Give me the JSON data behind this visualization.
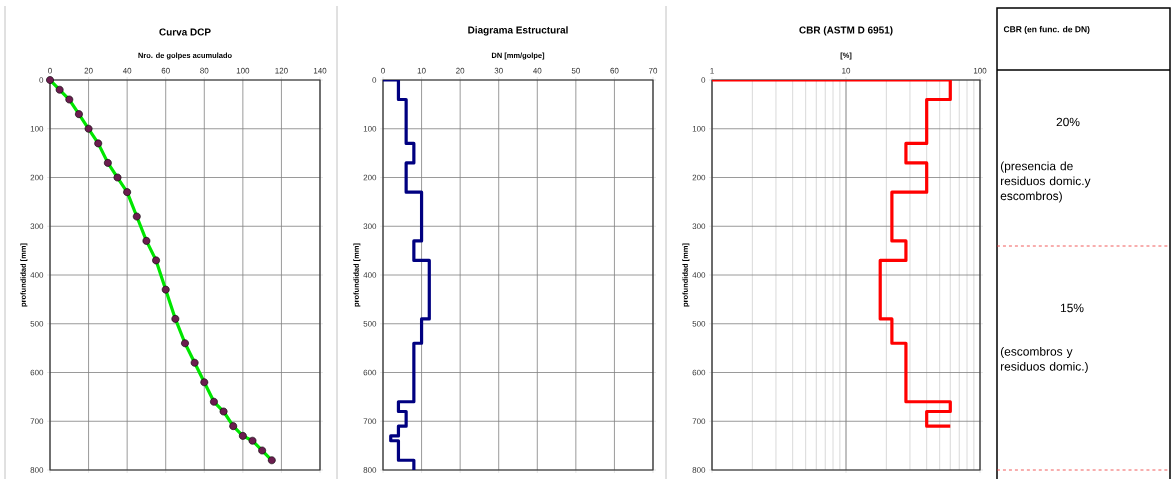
{
  "chart_data": [
    {
      "type": "line",
      "title": "Curva DCP",
      "xlabel": "Nro. de golpes acumulado",
      "ylabel": "profundidad [mm]",
      "xlim": [
        0,
        140
      ],
      "xticks": [
        0,
        20,
        40,
        60,
        80,
        100,
        120,
        140
      ],
      "ylim": [
        800,
        0
      ],
      "yticks": [
        0,
        100,
        200,
        300,
        400,
        500,
        600,
        700,
        800
      ],
      "grid": true,
      "marker": "circle",
      "series": [
        {
          "type": "line",
          "color": "#00e600",
          "colors": [
            "#6b1d4f",
            "#6b1d4f",
            "#6b1d4f",
            "#6b1d4f",
            "#6b1d4f",
            "#6b1d4f",
            "#6b1d4f",
            "#6b1d4f",
            "#6b1d4f",
            "#6b1d4f",
            "#6b1d4f",
            "#6b1d4f",
            "#6b1d4f",
            "#6b1d4f",
            "#6b1d4f",
            "#6b1d4f",
            "#6b1d4f",
            "#6b1d4f",
            "#6b1d4f",
            "#6b1d4f",
            "#6b1d4f",
            "#6b1d4f",
            "#6b1d4f",
            "#6b1d4f"
          ],
          "x": [
            0,
            5,
            10,
            15,
            20,
            25,
            30,
            35,
            40,
            45,
            50,
            55,
            60,
            65,
            70,
            75,
            80,
            85,
            90,
            95,
            100,
            105,
            110,
            115
          ],
          "values": [
            0,
            20,
            40,
            70,
            100,
            130,
            170,
            200,
            230,
            280,
            330,
            370,
            430,
            490,
            540,
            580,
            620,
            660,
            680,
            710,
            730,
            740,
            760,
            780
          ]
        }
      ]
    },
    {
      "type": "line",
      "title": "Diagrama Estructural",
      "xlabel": "DN [mm/golpe]",
      "ylabel": "profundidad [mm]",
      "xlim": [
        0,
        70
      ],
      "xticks": [
        0,
        10,
        20,
        30,
        40,
        50,
        60,
        70
      ],
      "ylim": [
        800,
        0
      ],
      "yticks": [
        0,
        100,
        200,
        300,
        400,
        500,
        600,
        700,
        800
      ],
      "grid": true,
      "series": [
        {
          "color": "#000080",
          "x": [
            0,
            4,
            4,
            6,
            6,
            8,
            8,
            6,
            6,
            10,
            10,
            8,
            8,
            12,
            12,
            10,
            10,
            8,
            8,
            4,
            4,
            6,
            6,
            4,
            4,
            2,
            2,
            4,
            4,
            8,
            8
          ],
          "values": [
            0,
            0,
            40,
            40,
            130,
            130,
            170,
            170,
            230,
            230,
            330,
            330,
            370,
            370,
            490,
            490,
            540,
            540,
            660,
            660,
            680,
            680,
            710,
            710,
            730,
            730,
            740,
            740,
            780,
            780,
            800
          ]
        }
      ]
    },
    {
      "type": "line",
      "title": "CBR (ASTM D 6951)",
      "xlabel": "[%]",
      "ylabel": "profundidad [mm]",
      "log": "x",
      "xlim": [
        1,
        100
      ],
      "xticks": [
        1,
        10,
        100
      ],
      "ylim": [
        800,
        0
      ],
      "yticks": [
        0,
        100,
        200,
        300,
        400,
        500,
        600,
        700,
        800
      ],
      "grid": true,
      "series": [
        {
          "color": "#ff0000",
          "x": [
            1,
            60,
            60,
            40,
            40,
            28,
            28,
            40,
            40,
            22,
            22,
            28,
            28,
            18,
            18,
            22,
            22,
            28,
            28,
            60,
            60,
            40,
            40,
            60
          ],
          "values": [
            0,
            0,
            40,
            40,
            130,
            130,
            170,
            170,
            230,
            230,
            330,
            330,
            370,
            370,
            490,
            490,
            540,
            540,
            660,
            660,
            680,
            680,
            710,
            710
          ]
        }
      ]
    },
    {
      "type": "other",
      "title": "CBR (en func. de DN)",
      "annotations": [
        "20%",
        "(presencia de residuos domic.y escombros)",
        "15%",
        "(escombros y residuos domic.)"
      ]
    }
  ]
}
